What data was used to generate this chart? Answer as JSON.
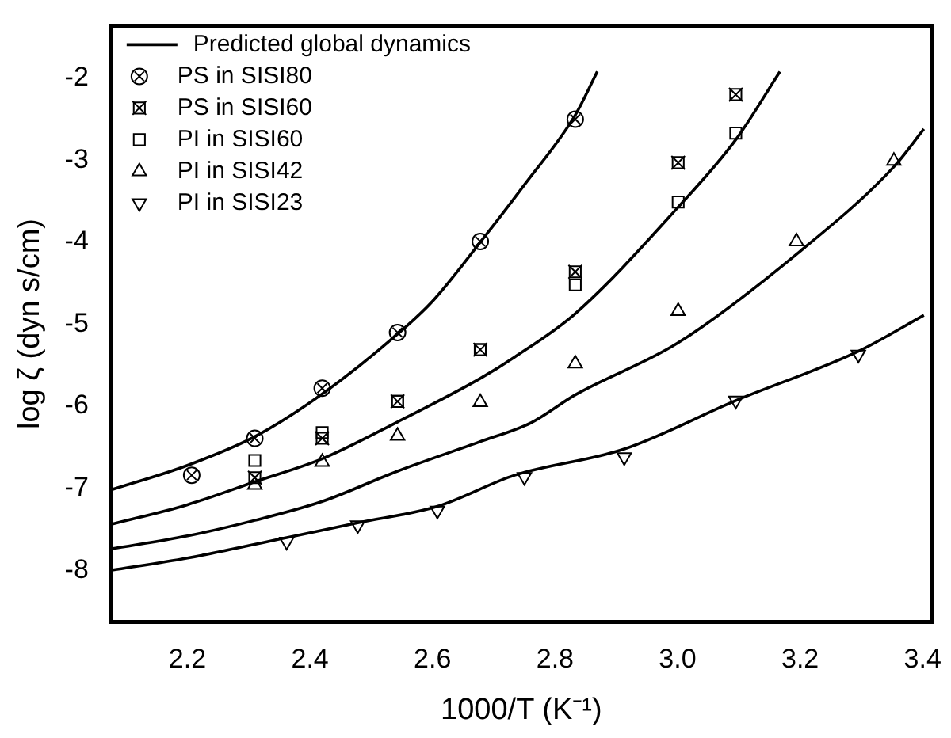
{
  "chart_data": {
    "type": "scatter",
    "xlabel": "1000/T (K⁻¹)",
    "ylabel": "log ζ (dyn s/cm)",
    "xlim": [
      2.075,
      3.415
    ],
    "ylim": [
      -8.63,
      -1.36
    ],
    "xticks": [
      2.2,
      {
        "value": 2.4,
        "label": "2.4"
      },
      2.6,
      2.8,
      {
        "value": 3.0,
        "label": "3.0"
      },
      3.2,
      3.4
    ],
    "yticks": [
      -8,
      -7,
      -6,
      -5,
      -4,
      -3,
      -2
    ],
    "grid": false,
    "legend": "top left",
    "series": [
      {
        "name": "Predicted global dynamics",
        "type": "line",
        "color": "#000000",
        "marker": "none",
        "line_style": "solid",
        "x": [
          2.075,
          2.2,
          2.31,
          2.42,
          2.543,
          2.6,
          2.678,
          2.75,
          2.833,
          2.869
        ],
        "values": [
          -7.02,
          -6.72,
          -6.37,
          -5.85,
          -5.12,
          -4.72,
          -4.0,
          -3.3,
          -2.45,
          -1.92
        ]
      },
      {
        "type": "line",
        "color": "#000000",
        "marker": "none",
        "line_style": "solid",
        "x": [
          2.075,
          2.2,
          2.31,
          2.42,
          2.543,
          2.678,
          2.734,
          2.833,
          3.0,
          3.095,
          3.167
        ],
        "values": [
          -7.44,
          -7.2,
          -6.92,
          -6.64,
          -6.19,
          -5.66,
          -5.4,
          -4.87,
          -3.58,
          -2.75,
          -1.92
        ]
      },
      {
        "type": "line",
        "color": "#000000",
        "marker": "none",
        "line_style": "solid",
        "x": [
          2.075,
          2.2,
          2.31,
          2.42,
          2.543,
          2.678,
          2.761,
          2.833,
          3.0,
          3.2,
          3.353,
          3.402
        ],
        "values": [
          -7.74,
          -7.58,
          -7.39,
          -7.16,
          -6.79,
          -6.43,
          -6.2,
          -5.86,
          -5.23,
          -4.11,
          -3.08,
          -2.62
        ]
      },
      {
        "type": "line",
        "color": "#000000",
        "marker": "none",
        "line_style": "solid",
        "x": [
          2.075,
          2.2,
          2.362,
          2.478,
          2.608,
          2.734,
          2.913,
          3.095,
          3.295,
          3.402
        ],
        "values": [
          -8.0,
          -7.85,
          -7.6,
          -7.42,
          -7.22,
          -6.84,
          -6.52,
          -5.93,
          -5.33,
          -4.89
        ]
      },
      {
        "name": "PS in SISI80",
        "color": "#000000",
        "marker": "circle-cross",
        "x": [
          2.207,
          2.31,
          2.42,
          2.543,
          2.678,
          2.833
        ],
        "values": [
          -6.84,
          -6.39,
          -5.78,
          -5.1,
          -3.99,
          -2.5
        ]
      },
      {
        "name": "PS in SISI60",
        "color": "#000000",
        "marker": "square-cross",
        "x": [
          2.31,
          2.42,
          2.543,
          2.678,
          2.833,
          3.001,
          3.095
        ],
        "values": [
          -6.87,
          -6.39,
          -5.94,
          -5.31,
          -4.36,
          -3.03,
          -2.2
        ]
      },
      {
        "name": "PI in SISI60",
        "color": "#000000",
        "marker": "square",
        "x": [
          2.31,
          2.42,
          2.543,
          2.678,
          2.833,
          3.001,
          3.095
        ],
        "values": [
          -6.66,
          -6.32,
          -5.94,
          -5.31,
          -4.52,
          -3.51,
          -2.67
        ]
      },
      {
        "name": "PI in SISI42",
        "color": "#000000",
        "marker": "triangle",
        "x": [
          2.31,
          2.42,
          2.543,
          2.678,
          2.833,
          3.001,
          3.194,
          3.353
        ],
        "values": [
          -6.96,
          -6.68,
          -6.36,
          -5.95,
          -5.48,
          -4.84,
          -3.99,
          -3.01
        ]
      },
      {
        "name": "PI in SISI23",
        "color": "#000000",
        "marker": "triangle-down",
        "x": [
          2.362,
          2.478,
          2.608,
          2.75,
          2.913,
          3.095,
          3.295
        ],
        "values": [
          -7.65,
          -7.45,
          -7.27,
          -6.86,
          -6.62,
          -5.93,
          -5.37
        ]
      }
    ]
  }
}
